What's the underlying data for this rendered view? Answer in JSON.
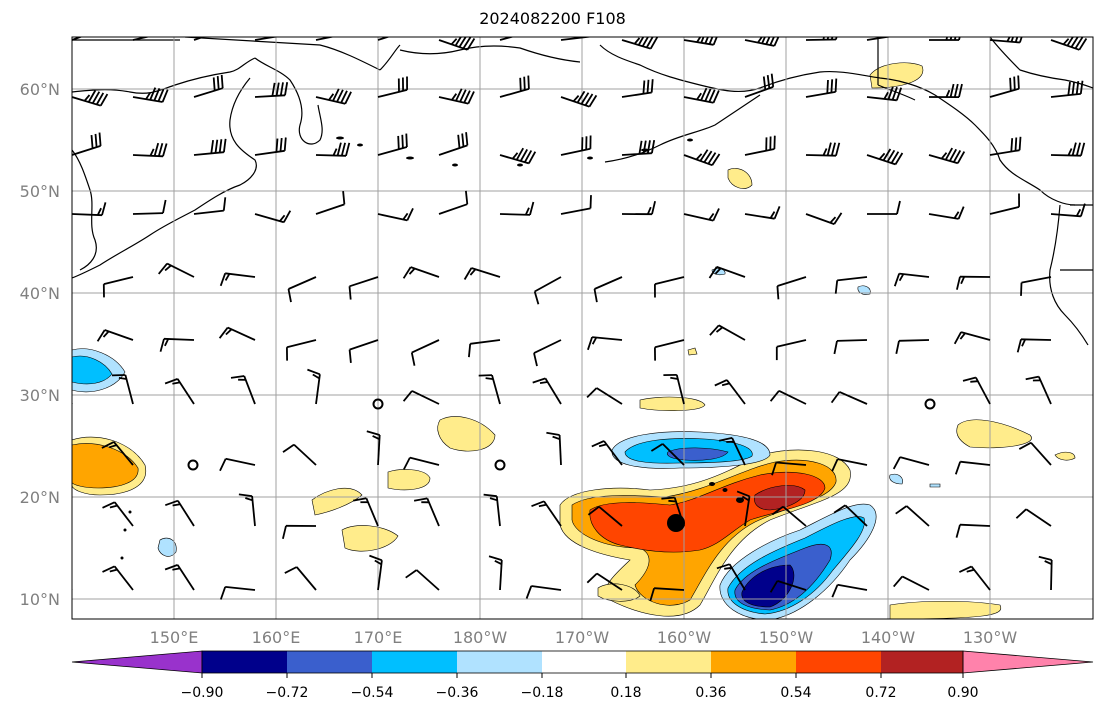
{
  "title": "2024082200 F108",
  "map": {
    "lat_labels": [
      "10°N",
      "20°N",
      "30°N",
      "40°N",
      "50°N",
      "60°N"
    ],
    "lon_labels": [
      "150°E",
      "160°E",
      "170°E",
      "180°W",
      "170°W",
      "160°W",
      "150°W",
      "140°W",
      "130°W"
    ],
    "label_color": "#808080",
    "grid_color": "#a0a0a0"
  },
  "colorbar": {
    "labels": [
      "−0.90",
      "−0.72",
      "−0.54",
      "−0.36",
      "−0.18",
      "0.18",
      "0.36",
      "0.54",
      "0.72",
      "0.90"
    ],
    "colors": [
      "#9932cc",
      "#00008b",
      "#3a5fcd",
      "#00bfff",
      "#b0e2ff",
      "#ffffff",
      "#ffec8b",
      "#ffa500",
      "#ff4500",
      "#b22222",
      "#ff82ab"
    ]
  }
}
